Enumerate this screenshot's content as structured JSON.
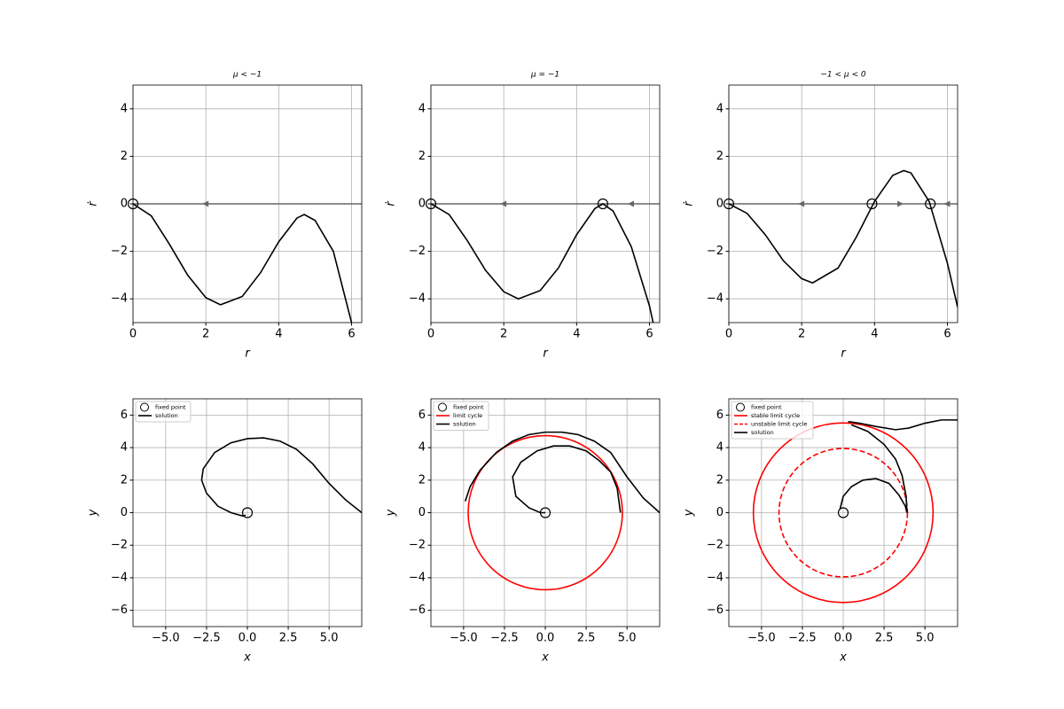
{
  "chart_data": [
    {
      "type": "line",
      "title": "μ < −1",
      "xlabel": "r",
      "ylabel": "ṙ",
      "color": "#000000",
      "x": [
        0,
        0.5,
        1,
        1.5,
        2,
        2.4,
        3,
        3.5,
        4,
        4.5,
        4.7,
        5,
        5.5,
        6
      ],
      "values": [
        0,
        -0.5,
        -1.7,
        -3.0,
        -3.95,
        -4.25,
        -3.9,
        -2.9,
        -1.6,
        -0.6,
        -0.45,
        -0.7,
        -2.0,
        -5.0
      ],
      "fixed_points": {
        "x": [
          0
        ],
        "values": [
          0
        ]
      },
      "arrows": [
        {
          "x": 2,
          "direction": "left"
        }
      ],
      "xlim": [
        0,
        6.28
      ],
      "ylim": [
        -5,
        5
      ],
      "xticks": [
        0,
        2,
        4,
        6
      ],
      "yticks": [
        {
          "value": -4,
          "label": "−4"
        },
        {
          "value": -2,
          "label": "−2"
        },
        0,
        2,
        4
      ],
      "grid": true
    },
    {
      "type": "line",
      "title": "μ = −1",
      "xlabel": "r",
      "ylabel": "ṙ",
      "color": "#000000",
      "x": [
        0,
        0.5,
        1,
        1.5,
        2,
        2.4,
        3,
        3.5,
        4,
        4.5,
        4.72,
        5,
        5.5,
        6,
        6.1
      ],
      "values": [
        0,
        -0.45,
        -1.55,
        -2.8,
        -3.7,
        -4.0,
        -3.65,
        -2.7,
        -1.3,
        -0.2,
        0,
        -0.3,
        -1.8,
        -4.3,
        -5.0
      ],
      "fixed_points": {
        "x": [
          0,
          4.72
        ],
        "values": [
          0,
          0
        ]
      },
      "arrows": [
        {
          "x": 2,
          "direction": "left"
        },
        {
          "x": 5.5,
          "direction": "left"
        }
      ],
      "xlim": [
        0,
        6.28
      ],
      "ylim": [
        -5,
        5
      ],
      "xticks": [
        0,
        2,
        4,
        6
      ],
      "yticks": [
        {
          "value": -4,
          "label": "−4"
        },
        {
          "value": -2,
          "label": "−2"
        },
        0,
        2,
        4
      ],
      "grid": true
    },
    {
      "type": "line",
      "title": "−1 < μ < 0",
      "xlabel": "r",
      "ylabel": "ṙ",
      "color": "#000000",
      "x": [
        0,
        0.5,
        1,
        1.5,
        2,
        2.3,
        3,
        3.5,
        4,
        4.5,
        4.8,
        5,
        5.5,
        6,
        6.28
      ],
      "values": [
        0,
        -0.4,
        -1.3,
        -2.4,
        -3.15,
        -3.33,
        -2.7,
        -1.4,
        0.1,
        1.2,
        1.4,
        1.3,
        0.1,
        -2.5,
        -4.35
      ],
      "fixed_points": {
        "x": [
          0,
          3.93,
          5.53
        ],
        "values": [
          0,
          0,
          0
        ]
      },
      "arrows": [
        {
          "x": 2,
          "direction": "left"
        },
        {
          "x": 4.7,
          "direction": "right"
        },
        {
          "x": 6,
          "direction": "left"
        }
      ],
      "xlim": [
        0,
        6.28
      ],
      "ylim": [
        -5,
        5
      ],
      "xticks": [
        0,
        2,
        4,
        6
      ],
      "yticks": [
        {
          "value": -4,
          "label": "−4"
        },
        {
          "value": -2,
          "label": "−2"
        },
        0,
        2,
        4
      ],
      "grid": true
    },
    {
      "type": "phase",
      "xlabel": "x",
      "ylabel": "y",
      "fixed_points": {
        "name": "fixed point",
        "x": [
          0
        ],
        "values": [
          0
        ]
      },
      "cycles": [],
      "series": [
        {
          "name": "solution",
          "color": "#000000",
          "x": [
            7,
            6,
            5,
            4,
            3,
            2,
            1,
            0,
            -1,
            -2,
            -2.7,
            -2.8,
            -2.5,
            -1.8,
            -1,
            -0.3,
            -0.1
          ],
          "values": [
            0,
            0.8,
            1.8,
            3.0,
            3.9,
            4.4,
            4.6,
            4.55,
            4.3,
            3.7,
            2.7,
            2.0,
            1.2,
            0.4,
            0,
            -0.2,
            -0.15
          ]
        }
      ],
      "xlim": [
        -7,
        7
      ],
      "ylim": [
        -7,
        7
      ],
      "xticks": [
        {
          "value": -5,
          "label": "−5.0"
        },
        {
          "value": -2.5,
          "label": "−2.5"
        },
        {
          "value": 0,
          "label": "0.0"
        },
        {
          "value": 2.5,
          "label": "2.5"
        },
        {
          "value": 5,
          "label": "5.0"
        }
      ],
      "yticks": [
        {
          "value": -6,
          "label": "−6"
        },
        {
          "value": -4,
          "label": "−4"
        },
        {
          "value": -2,
          "label": "−2"
        },
        0,
        2,
        4,
        6
      ],
      "grid": true
    },
    {
      "type": "phase",
      "xlabel": "x",
      "ylabel": "y",
      "fixed_points": {
        "name": "fixed point",
        "x": [
          0
        ],
        "values": [
          0
        ]
      },
      "cycles": [
        {
          "name": "limit cycle",
          "color": "#ff0000",
          "dashed": false,
          "radius": 4.72
        }
      ],
      "series": [
        {
          "name": "solution",
          "color": "#000000",
          "x": [
            7,
            6,
            5,
            4,
            3,
            2,
            1,
            0,
            -1,
            -2,
            -3,
            -4,
            -4.6,
            -4.9,
            null,
            4.6,
            4.4,
            4,
            3.3,
            2.5,
            1.5,
            0.5,
            -0.5,
            -1.5,
            -2.0,
            -1.8,
            -1.0,
            -0.3,
            0
          ],
          "values": [
            0,
            0.9,
            2.2,
            3.7,
            4.4,
            4.8,
            4.95,
            4.95,
            4.8,
            4.4,
            3.7,
            2.6,
            1.6,
            0.7,
            null,
            0,
            1.5,
            2.5,
            3.2,
            3.8,
            4.1,
            4.1,
            3.8,
            3.1,
            2.2,
            1.0,
            0.3,
            0,
            0
          ]
        }
      ],
      "xlim": [
        -7,
        7
      ],
      "ylim": [
        -7,
        7
      ],
      "xticks": [
        {
          "value": -5,
          "label": "−5.0"
        },
        {
          "value": -2.5,
          "label": "−2.5"
        },
        {
          "value": 0,
          "label": "0.0"
        },
        {
          "value": 2.5,
          "label": "2.5"
        },
        {
          "value": 5,
          "label": "5.0"
        }
      ],
      "yticks": [
        {
          "value": -6,
          "label": "−6"
        },
        {
          "value": -4,
          "label": "−4"
        },
        {
          "value": -2,
          "label": "−2"
        },
        0,
        2,
        4,
        6
      ],
      "grid": true
    },
    {
      "type": "phase",
      "xlabel": "x",
      "ylabel": "y",
      "fixed_points": {
        "name": "fixed point",
        "x": [
          0
        ],
        "values": [
          0
        ]
      },
      "cycles": [
        {
          "name": "stable limit cycle",
          "color": "#ff0000",
          "dashed": false,
          "radius": 5.5
        },
        {
          "name": "unstable limit cycle",
          "color": "#ff0000",
          "dashed": true,
          "radius": 3.93
        }
      ],
      "series": [
        {
          "name": "solution",
          "color": "#000000",
          "x": [
            7,
            6,
            5,
            4,
            3.2,
            2,
            1,
            0.3,
            null,
            0.5,
            1.5,
            2.5,
            3.2,
            3.6,
            3.85,
            3.9,
            null,
            -0.2,
            0,
            0.5,
            1.2,
            2,
            2.8,
            3.4,
            3.8,
            3.9
          ],
          "values": [
            5.7,
            5.7,
            5.5,
            5.2,
            5.1,
            5.3,
            5.5,
            5.6,
            null,
            5.4,
            5.0,
            4.2,
            3.3,
            2.3,
            1.0,
            0,
            null,
            0.2,
            1,
            1.6,
            2.0,
            2.1,
            1.8,
            1.1,
            0.4,
            0
          ]
        }
      ],
      "xlim": [
        -7,
        7
      ],
      "ylim": [
        -7,
        7
      ],
      "xticks": [
        {
          "value": -5,
          "label": "−5.0"
        },
        {
          "value": -2.5,
          "label": "−2.5"
        },
        {
          "value": 0,
          "label": "0.0"
        },
        {
          "value": 2.5,
          "label": "2.5"
        },
        {
          "value": 5,
          "label": "5.0"
        }
      ],
      "yticks": [
        {
          "value": -6,
          "label": "−6"
        },
        {
          "value": -4,
          "label": "−4"
        },
        {
          "value": -2,
          "label": "−2"
        },
        0,
        2,
        4,
        6
      ],
      "grid": true
    }
  ]
}
